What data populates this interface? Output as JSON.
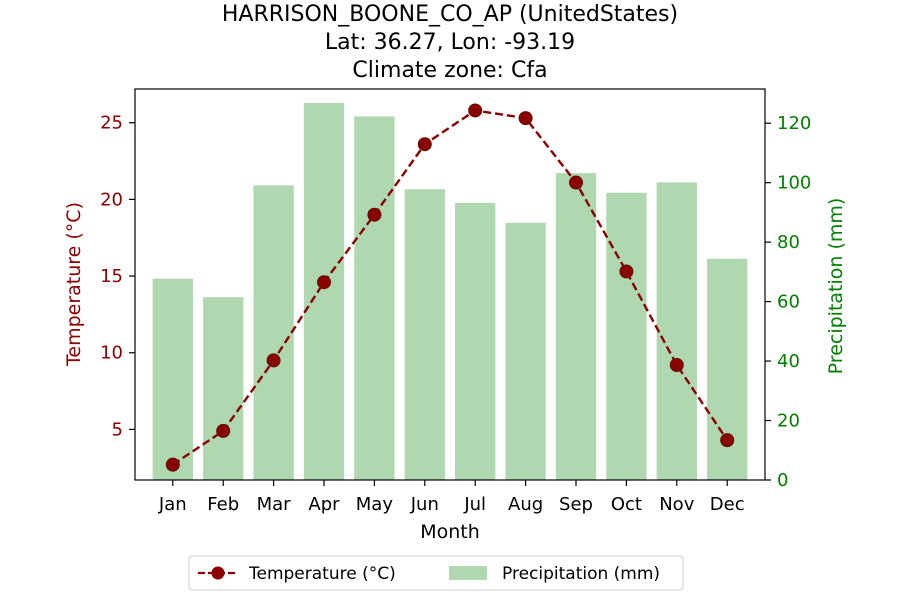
{
  "chart_data": {
    "type": "bar+line",
    "title_lines": [
      "HARRISON_BOONE_CO_AP (UnitedStates)",
      "Lat: 36.27, Lon: -93.19",
      "Climate zone: Cfa"
    ],
    "xlabel": "Month",
    "categories": [
      "Jan",
      "Feb",
      "Mar",
      "Apr",
      "May",
      "Jun",
      "Jul",
      "Aug",
      "Sep",
      "Oct",
      "Nov",
      "Dec"
    ],
    "left_axis": {
      "label": "Temperature (°C)",
      "ticks": [
        5,
        10,
        15,
        20,
        25
      ],
      "range": [
        1.7,
        27.2
      ],
      "color": "#8b0000"
    },
    "right_axis": {
      "label": "Precipitation (mm)",
      "ticks": [
        0,
        20,
        40,
        60,
        80,
        100,
        120
      ],
      "range": [
        0,
        131.5
      ],
      "color": "#008000"
    },
    "series": [
      {
        "name": "Temperature (°C)",
        "kind": "line",
        "axis": "left",
        "color": "#8b0000",
        "marker_color": "#5a1200",
        "style": "dashed-with-circles",
        "values": [
          2.7,
          4.9,
          9.5,
          14.6,
          19.0,
          23.6,
          25.8,
          25.3,
          21.1,
          15.3,
          9.2,
          4.3
        ]
      },
      {
        "name": "Precipitation (mm)",
        "kind": "bar",
        "axis": "right",
        "color": "#b0d8b0",
        "values": [
          67.7,
          61.5,
          99.1,
          126.8,
          122.3,
          97.8,
          93.2,
          86.5,
          103.2,
          96.6,
          100.1,
          74.4
        ]
      }
    ],
    "legend_position": "bottom-center",
    "grid": false
  }
}
